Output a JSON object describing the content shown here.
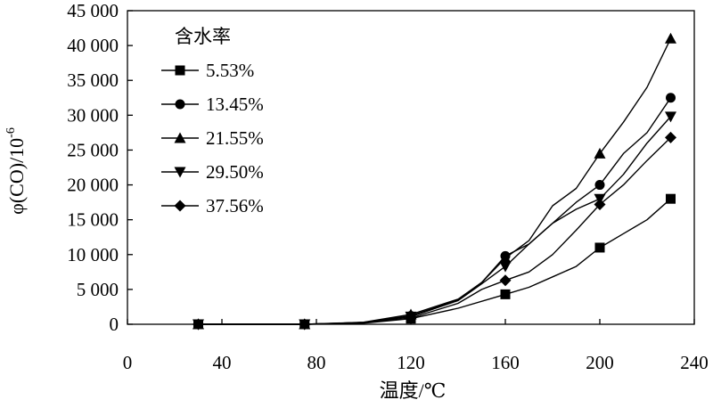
{
  "chart_data": {
    "type": "line",
    "xlabel": "温度/℃",
    "ylabel": "φ(CO)/10",
    "ylabel_exp": "-6",
    "xlim": [
      0,
      240
    ],
    "ylim": [
      0,
      45000
    ],
    "xticks": [
      0,
      40,
      80,
      120,
      160,
      200,
      240
    ],
    "xtick_labels": [
      "0",
      "40",
      "80",
      "120",
      "160",
      "200",
      "240"
    ],
    "yticks": [
      0,
      5000,
      10000,
      15000,
      20000,
      25000,
      30000,
      35000,
      40000,
      45000
    ],
    "ytick_labels": [
      "0",
      "5 000",
      "10 000",
      "15 000",
      "20 000",
      "25 000",
      "30 000",
      "35 000",
      "40 000",
      "45 000"
    ],
    "legend": {
      "title": "含水率",
      "placement": "top-left"
    },
    "grid": false,
    "series": [
      {
        "name": "5.53%",
        "marker": "square",
        "line": [
          [
            30,
            0
          ],
          [
            75,
            0
          ],
          [
            100,
            150
          ],
          [
            120,
            800
          ],
          [
            140,
            2300
          ],
          [
            160,
            4300
          ],
          [
            170,
            5300
          ],
          [
            180,
            6800
          ],
          [
            190,
            8300
          ],
          [
            200,
            11000
          ],
          [
            210,
            13000
          ],
          [
            220,
            15000
          ],
          [
            230,
            18000
          ]
        ],
        "markers": [
          [
            30,
            0
          ],
          [
            75,
            0
          ],
          [
            120,
            800
          ],
          [
            160,
            4300
          ],
          [
            200,
            11000
          ],
          [
            230,
            18000
          ]
        ]
      },
      {
        "name": "13.45%",
        "marker": "circle",
        "line": [
          [
            30,
            0
          ],
          [
            75,
            0
          ],
          [
            100,
            250
          ],
          [
            120,
            1200
          ],
          [
            140,
            3500
          ],
          [
            150,
            6000
          ],
          [
            160,
            9800
          ],
          [
            170,
            11500
          ],
          [
            180,
            14500
          ],
          [
            190,
            17500
          ],
          [
            200,
            20000
          ],
          [
            210,
            24500
          ],
          [
            220,
            27500
          ],
          [
            230,
            32500
          ]
        ],
        "markers": [
          [
            30,
            0
          ],
          [
            75,
            0
          ],
          [
            120,
            1200
          ],
          [
            160,
            9800
          ],
          [
            200,
            20000
          ],
          [
            230,
            32500
          ]
        ]
      },
      {
        "name": "21.55%",
        "marker": "triangle-up",
        "line": [
          [
            30,
            0
          ],
          [
            75,
            0
          ],
          [
            100,
            300
          ],
          [
            120,
            1400
          ],
          [
            140,
            3600
          ],
          [
            150,
            6000
          ],
          [
            160,
            9500
          ],
          [
            170,
            12000
          ],
          [
            180,
            17000
          ],
          [
            190,
            19500
          ],
          [
            200,
            24500
          ],
          [
            210,
            29000
          ],
          [
            220,
            34000
          ],
          [
            230,
            41000
          ]
        ],
        "markers": [
          [
            30,
            0
          ],
          [
            75,
            0
          ],
          [
            120,
            1400
          ],
          [
            160,
            9500
          ],
          [
            200,
            24500
          ],
          [
            230,
            41000
          ]
        ]
      },
      {
        "name": "29.50%",
        "marker": "triangle-down",
        "line": [
          [
            30,
            0
          ],
          [
            75,
            0
          ],
          [
            100,
            250
          ],
          [
            120,
            1100
          ],
          [
            140,
            3400
          ],
          [
            150,
            5800
          ],
          [
            160,
            8300
          ],
          [
            170,
            11500
          ],
          [
            180,
            14500
          ],
          [
            190,
            16500
          ],
          [
            200,
            18000
          ],
          [
            210,
            21500
          ],
          [
            220,
            26000
          ],
          [
            230,
            29800
          ]
        ],
        "markers": [
          [
            30,
            0
          ],
          [
            75,
            0
          ],
          [
            120,
            1100
          ],
          [
            160,
            8300
          ],
          [
            200,
            18000
          ],
          [
            230,
            29800
          ]
        ]
      },
      {
        "name": "37.56%",
        "marker": "diamond",
        "line": [
          [
            30,
            0
          ],
          [
            75,
            0
          ],
          [
            100,
            200
          ],
          [
            120,
            900
          ],
          [
            140,
            3000
          ],
          [
            150,
            5000
          ],
          [
            160,
            6300
          ],
          [
            170,
            7500
          ],
          [
            180,
            10000
          ],
          [
            190,
            13500
          ],
          [
            200,
            17200
          ],
          [
            210,
            20000
          ],
          [
            220,
            23500
          ],
          [
            230,
            26800
          ]
        ],
        "markers": [
          [
            30,
            0
          ],
          [
            75,
            0
          ],
          [
            120,
            900
          ],
          [
            160,
            6300
          ],
          [
            200,
            17200
          ],
          [
            230,
            26800
          ]
        ]
      }
    ]
  }
}
